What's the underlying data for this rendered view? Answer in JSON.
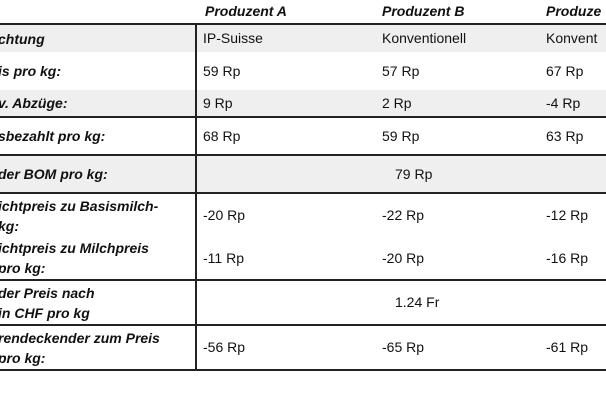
{
  "headers": [
    "Produzent A",
    "Produzent B",
    "Produze"
  ],
  "rows": [
    {
      "label": [
        "chtung"
      ],
      "values": [
        "IP-Suisse",
        "Konventionell",
        "Konvent"
      ]
    },
    {
      "label": [
        "is pro kg:"
      ],
      "values": [
        "59 Rp",
        "57 Rp",
        "67 Rp"
      ]
    },
    {
      "label": [
        "v. Abzüge:"
      ],
      "values": [
        "9 Rp",
        "2 Rp",
        "-4 Rp"
      ]
    },
    {
      "label": [
        "sbezahlt pro kg:"
      ],
      "values": [
        "68 Rp",
        "59 Rp",
        "63 Rp"
      ]
    },
    {
      "label": [
        "der BOM pro kg:"
      ],
      "merged": "79 Rp"
    },
    {
      "label": [
        "ichtpreis zu Basismilch-",
        " kg:"
      ],
      "values": [
        "-20 Rp",
        "-22 Rp",
        "-12 Rp"
      ]
    },
    {
      "label": [
        "ichtpreis zu Milchpreis",
        "pro kg:"
      ],
      "values": [
        "-11 Rp",
        "-20 Rp",
        "-16 Rp"
      ]
    },
    {
      "label": [
        "der Preis nach",
        "in CHF pro kg"
      ],
      "merged": "1.24 Fr"
    },
    {
      "label": [
        "rendeckender zum Preis",
        "pro kg:"
      ],
      "values": [
        "-56 Rp",
        "-65 Rp",
        "-61 Rp"
      ]
    }
  ]
}
